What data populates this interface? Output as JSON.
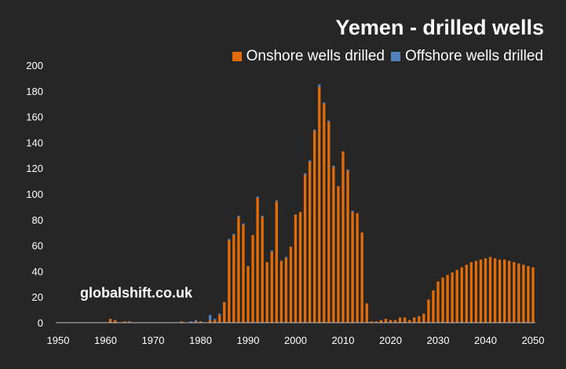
{
  "chart_data": {
    "type": "bar",
    "title": "Yemen - drilled wells",
    "stacked": true,
    "x": [
      1950,
      1951,
      1952,
      1953,
      1954,
      1955,
      1956,
      1957,
      1958,
      1959,
      1960,
      1961,
      1962,
      1963,
      1964,
      1965,
      1966,
      1967,
      1968,
      1969,
      1970,
      1971,
      1972,
      1973,
      1974,
      1975,
      1976,
      1977,
      1978,
      1979,
      1980,
      1981,
      1982,
      1983,
      1984,
      1985,
      1986,
      1987,
      1988,
      1989,
      1990,
      1991,
      1992,
      1993,
      1994,
      1995,
      1996,
      1997,
      1998,
      1999,
      2000,
      2001,
      2002,
      2003,
      2004,
      2005,
      2006,
      2007,
      2008,
      2009,
      2010,
      2011,
      2012,
      2013,
      2014,
      2015,
      2016,
      2017,
      2018,
      2019,
      2020,
      2021,
      2022,
      2023,
      2024,
      2025,
      2026,
      2027,
      2028,
      2029,
      2030,
      2031,
      2032,
      2033,
      2034,
      2035,
      2036,
      2037,
      2038,
      2039,
      2040,
      2041,
      2042,
      2043,
      2044,
      2045,
      2046,
      2047,
      2048,
      2049,
      2050
    ],
    "series": [
      {
        "name": "Onshore wells drilled",
        "color": "#E36C0A",
        "values": [
          0,
          0,
          0,
          0,
          0,
          0,
          0,
          0,
          0,
          0,
          0,
          3,
          2,
          0,
          1,
          1,
          0,
          0,
          0,
          0,
          0,
          0,
          0,
          0,
          0,
          0,
          1,
          0,
          0,
          1,
          1,
          0,
          2,
          2,
          6,
          16,
          64,
          68,
          82,
          76,
          44,
          68,
          97,
          82,
          47,
          55,
          94,
          48,
          50,
          59,
          84,
          86,
          115,
          125,
          149,
          183,
          170,
          156,
          121,
          106,
          133,
          118,
          86,
          85,
          70,
          15,
          1,
          1,
          2,
          3,
          2,
          2,
          4,
          4,
          2,
          4,
          5,
          7,
          18,
          25,
          32,
          35,
          37,
          39,
          41,
          43,
          45,
          47,
          48,
          49,
          50,
          51,
          50,
          49,
          49,
          48,
          47,
          46,
          45,
          44,
          43
        ]
      },
      {
        "name": "Offshore wells drilled",
        "color": "#4F81BD",
        "values": [
          0,
          0,
          0,
          0,
          0,
          0,
          0,
          0,
          0,
          0,
          0,
          0,
          0,
          0,
          0,
          0,
          0,
          0,
          0,
          0,
          0,
          0,
          0,
          0,
          0,
          0,
          0,
          0,
          1,
          1,
          0,
          0,
          4,
          1,
          1,
          0,
          1,
          1,
          1,
          1,
          0,
          0,
          1,
          1,
          0,
          1,
          1,
          0,
          1,
          0,
          0,
          0,
          1,
          1,
          1,
          2,
          1,
          1,
          1,
          0,
          0,
          1,
          1,
          0,
          0,
          0,
          0,
          0,
          0,
          0,
          0,
          0,
          0,
          0,
          0,
          0,
          0,
          0,
          0,
          0,
          0,
          0,
          0,
          0,
          0,
          0,
          0,
          0,
          0,
          0,
          0,
          0,
          0,
          0,
          0,
          0,
          0,
          0,
          0,
          0,
          0
        ]
      }
    ],
    "ylim": [
      0,
      200
    ],
    "yticks": [
      0,
      20,
      40,
      60,
      80,
      100,
      120,
      140,
      160,
      180,
      200
    ],
    "xticks": [
      1950,
      1960,
      1970,
      1980,
      1990,
      2000,
      2010,
      2020,
      2030,
      2040,
      2050
    ],
    "grid": false,
    "legend_position": "top-right",
    "background": "#262626",
    "axis_color": "#BFBFBF"
  },
  "watermark": "globalshift.co.uk"
}
